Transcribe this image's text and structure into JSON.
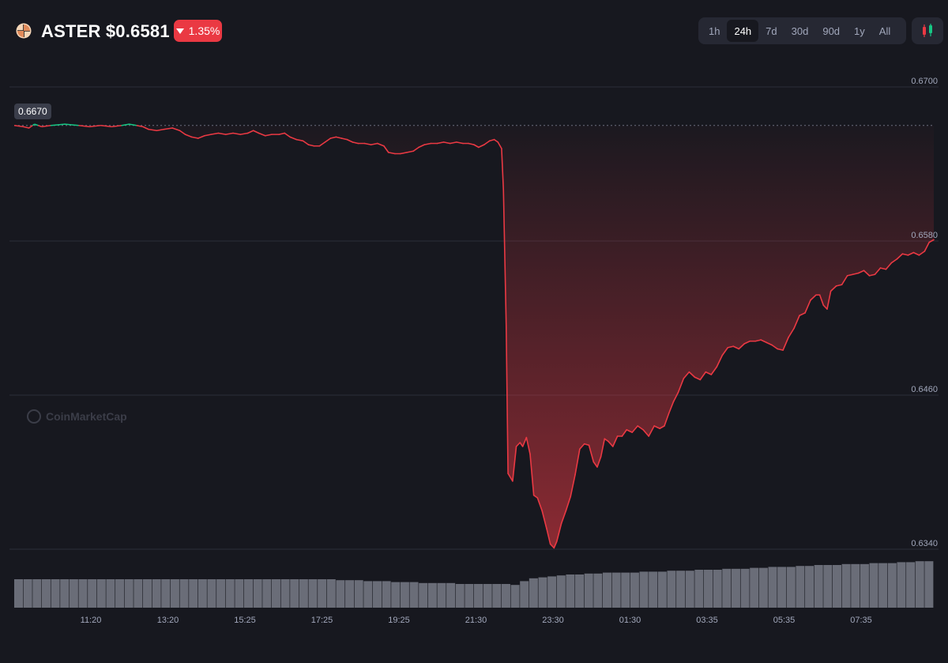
{
  "header": {
    "symbol": "ASTER",
    "price": "$0.6581",
    "change": "1.35%",
    "change_direction": "down",
    "change_color": "#ea3943",
    "coin_icon": "aster-logo-icon"
  },
  "ranges": [
    {
      "label": "1h",
      "active": false
    },
    {
      "label": "24h",
      "active": true
    },
    {
      "label": "7d",
      "active": false
    },
    {
      "label": "30d",
      "active": false
    },
    {
      "label": "90d",
      "active": false
    },
    {
      "label": "1y",
      "active": false
    },
    {
      "label": "All",
      "active": false
    }
  ],
  "chart_type_icon": "candlestick-icon",
  "watermark": "CoinMarketCap",
  "chart_data": {
    "type": "line",
    "xlabel": "",
    "ylabel": "",
    "y_ticks": [
      0.67,
      0.658,
      0.646,
      0.634
    ],
    "y_tick_labels": [
      "0.6700",
      "0.6580",
      "0.6460",
      "0.6340"
    ],
    "ylim": [
      0.634,
      0.67
    ],
    "x_ticks": [
      "11:20",
      "13:20",
      "15:25",
      "17:25",
      "19:25",
      "21:30",
      "23:30",
      "01:30",
      "03:35",
      "05:35",
      "07:35"
    ],
    "open_price": 0.667,
    "open_label": "0.6670",
    "up_color": "#16c784",
    "down_color": "#ea3943",
    "grid": true,
    "series": [
      {
        "points": [
          [
            0.0,
            0.667
          ],
          [
            0.01,
            0.6669
          ],
          [
            0.016,
            0.6668
          ],
          [
            0.022,
            0.6671
          ],
          [
            0.03,
            0.6669
          ],
          [
            0.04,
            0.667
          ],
          [
            0.055,
            0.6671
          ],
          [
            0.07,
            0.667
          ],
          [
            0.082,
            0.6669
          ],
          [
            0.094,
            0.667
          ],
          [
            0.106,
            0.6669
          ],
          [
            0.117,
            0.667
          ],
          [
            0.125,
            0.6671
          ],
          [
            0.133,
            0.667
          ],
          [
            0.14,
            0.6669
          ],
          [
            0.146,
            0.6667
          ],
          [
            0.155,
            0.6666
          ],
          [
            0.163,
            0.6667
          ],
          [
            0.172,
            0.6668
          ],
          [
            0.18,
            0.6666
          ],
          [
            0.186,
            0.6663
          ],
          [
            0.193,
            0.6661
          ],
          [
            0.2,
            0.666
          ],
          [
            0.207,
            0.6662
          ],
          [
            0.214,
            0.6663
          ],
          [
            0.222,
            0.6664
          ],
          [
            0.23,
            0.6663
          ],
          [
            0.238,
            0.6664
          ],
          [
            0.246,
            0.6663
          ],
          [
            0.254,
            0.6664
          ],
          [
            0.26,
            0.6666
          ],
          [
            0.266,
            0.6664
          ],
          [
            0.273,
            0.6662
          ],
          [
            0.28,
            0.6663
          ],
          [
            0.288,
            0.6663
          ],
          [
            0.294,
            0.6664
          ],
          [
            0.3,
            0.6661
          ],
          [
            0.307,
            0.6659
          ],
          [
            0.314,
            0.6658
          ],
          [
            0.32,
            0.6655
          ],
          [
            0.326,
            0.6654
          ],
          [
            0.332,
            0.6654
          ],
          [
            0.338,
            0.6657
          ],
          [
            0.344,
            0.666
          ],
          [
            0.35,
            0.6661
          ],
          [
            0.356,
            0.666
          ],
          [
            0.362,
            0.6659
          ],
          [
            0.368,
            0.6657
          ],
          [
            0.374,
            0.6656
          ],
          [
            0.381,
            0.6656
          ],
          [
            0.388,
            0.6655
          ],
          [
            0.395,
            0.6656
          ],
          [
            0.402,
            0.6654
          ],
          [
            0.407,
            0.6649
          ],
          [
            0.414,
            0.6648
          ],
          [
            0.42,
            0.6648
          ],
          [
            0.427,
            0.6649
          ],
          [
            0.434,
            0.665
          ],
          [
            0.44,
            0.6653
          ],
          [
            0.446,
            0.6655
          ],
          [
            0.453,
            0.6656
          ],
          [
            0.46,
            0.6656
          ],
          [
            0.467,
            0.6657
          ],
          [
            0.474,
            0.6656
          ],
          [
            0.481,
            0.6657
          ],
          [
            0.488,
            0.6656
          ],
          [
            0.494,
            0.6656
          ],
          [
            0.5,
            0.6655
          ],
          [
            0.505,
            0.6653
          ],
          [
            0.511,
            0.6655
          ],
          [
            0.517,
            0.6658
          ],
          [
            0.522,
            0.6659
          ],
          [
            0.526,
            0.6657
          ],
          [
            0.53,
            0.6652
          ],
          [
            0.532,
            0.662
          ],
          [
            0.535,
            0.6515
          ],
          [
            0.537,
            0.6399
          ],
          [
            0.542,
            0.6393
          ],
          [
            0.546,
            0.642
          ],
          [
            0.55,
            0.6423
          ],
          [
            0.553,
            0.642
          ],
          [
            0.557,
            0.6427
          ],
          [
            0.561,
            0.6414
          ],
          [
            0.565,
            0.6382
          ],
          [
            0.569,
            0.638
          ],
          [
            0.574,
            0.637
          ],
          [
            0.579,
            0.6356
          ],
          [
            0.583,
            0.6344
          ],
          [
            0.587,
            0.6341
          ],
          [
            0.59,
            0.6346
          ],
          [
            0.595,
            0.636
          ],
          [
            0.6,
            0.637
          ],
          [
            0.605,
            0.6381
          ],
          [
            0.61,
            0.6398
          ],
          [
            0.615,
            0.6418
          ],
          [
            0.62,
            0.6422
          ],
          [
            0.625,
            0.6421
          ],
          [
            0.63,
            0.6408
          ],
          [
            0.634,
            0.6404
          ],
          [
            0.638,
            0.6412
          ],
          [
            0.642,
            0.6426
          ],
          [
            0.646,
            0.6424
          ],
          [
            0.651,
            0.642
          ],
          [
            0.656,
            0.6428
          ],
          [
            0.661,
            0.6428
          ],
          [
            0.666,
            0.6433
          ],
          [
            0.672,
            0.6431
          ],
          [
            0.678,
            0.6436
          ],
          [
            0.684,
            0.6433
          ],
          [
            0.69,
            0.6428
          ],
          [
            0.696,
            0.6436
          ],
          [
            0.702,
            0.6434
          ],
          [
            0.707,
            0.6436
          ],
          [
            0.712,
            0.6446
          ],
          [
            0.717,
            0.6455
          ],
          [
            0.722,
            0.6462
          ],
          [
            0.728,
            0.6473
          ],
          [
            0.734,
            0.6478
          ],
          [
            0.74,
            0.6474
          ],
          [
            0.746,
            0.6472
          ],
          [
            0.752,
            0.6478
          ],
          [
            0.758,
            0.6476
          ],
          [
            0.764,
            0.6482
          ],
          [
            0.77,
            0.6491
          ],
          [
            0.776,
            0.6497
          ],
          [
            0.782,
            0.6498
          ],
          [
            0.788,
            0.6496
          ],
          [
            0.794,
            0.65
          ],
          [
            0.8,
            0.6502
          ],
          [
            0.806,
            0.6502
          ],
          [
            0.812,
            0.6503
          ],
          [
            0.818,
            0.6501
          ],
          [
            0.824,
            0.6499
          ],
          [
            0.83,
            0.6496
          ],
          [
            0.836,
            0.6495
          ],
          [
            0.842,
            0.6505
          ],
          [
            0.848,
            0.6512
          ],
          [
            0.854,
            0.6522
          ],
          [
            0.86,
            0.6524
          ],
          [
            0.866,
            0.6534
          ],
          [
            0.872,
            0.6538
          ],
          [
            0.876,
            0.6538
          ],
          [
            0.88,
            0.653
          ],
          [
            0.884,
            0.6527
          ],
          [
            0.888,
            0.6541
          ],
          [
            0.894,
            0.6545
          ],
          [
            0.9,
            0.6546
          ],
          [
            0.906,
            0.6553
          ],
          [
            0.912,
            0.6554
          ],
          [
            0.918,
            0.6555
          ],
          [
            0.924,
            0.6557
          ],
          [
            0.93,
            0.6553
          ],
          [
            0.936,
            0.6554
          ],
          [
            0.942,
            0.6559
          ],
          [
            0.948,
            0.6558
          ],
          [
            0.954,
            0.6563
          ],
          [
            0.96,
            0.6566
          ],
          [
            0.966,
            0.657
          ],
          [
            0.972,
            0.6569
          ],
          [
            0.978,
            0.6571
          ],
          [
            0.984,
            0.6569
          ],
          [
            0.99,
            0.6572
          ],
          [
            0.995,
            0.6579
          ],
          [
            1.0,
            0.6581
          ]
        ]
      }
    ],
    "volume": {
      "description_visible": false,
      "bars": [
        0.3,
        0.3,
        0.3,
        0.3,
        0.3,
        0.3,
        0.3,
        0.3,
        0.3,
        0.3,
        0.3,
        0.3,
        0.3,
        0.3,
        0.3,
        0.3,
        0.3,
        0.3,
        0.3,
        0.3,
        0.3,
        0.3,
        0.3,
        0.3,
        0.3,
        0.3,
        0.3,
        0.3,
        0.3,
        0.3,
        0.3,
        0.3,
        0.3,
        0.3,
        0.3,
        0.29,
        0.29,
        0.29,
        0.28,
        0.28,
        0.28,
        0.27,
        0.27,
        0.27,
        0.26,
        0.26,
        0.26,
        0.26,
        0.25,
        0.25,
        0.25,
        0.25,
        0.25,
        0.25,
        0.24,
        0.28,
        0.31,
        0.32,
        0.33,
        0.34,
        0.35,
        0.35,
        0.36,
        0.36,
        0.37,
        0.37,
        0.37,
        0.37,
        0.38,
        0.38,
        0.38,
        0.39,
        0.39,
        0.39,
        0.4,
        0.4,
        0.4,
        0.41,
        0.41,
        0.41,
        0.42,
        0.42,
        0.43,
        0.43,
        0.43,
        0.44,
        0.44,
        0.45,
        0.45,
        0.45,
        0.46,
        0.46,
        0.46,
        0.47,
        0.47,
        0.47,
        0.48,
        0.48,
        0.49,
        0.49
      ]
    }
  }
}
